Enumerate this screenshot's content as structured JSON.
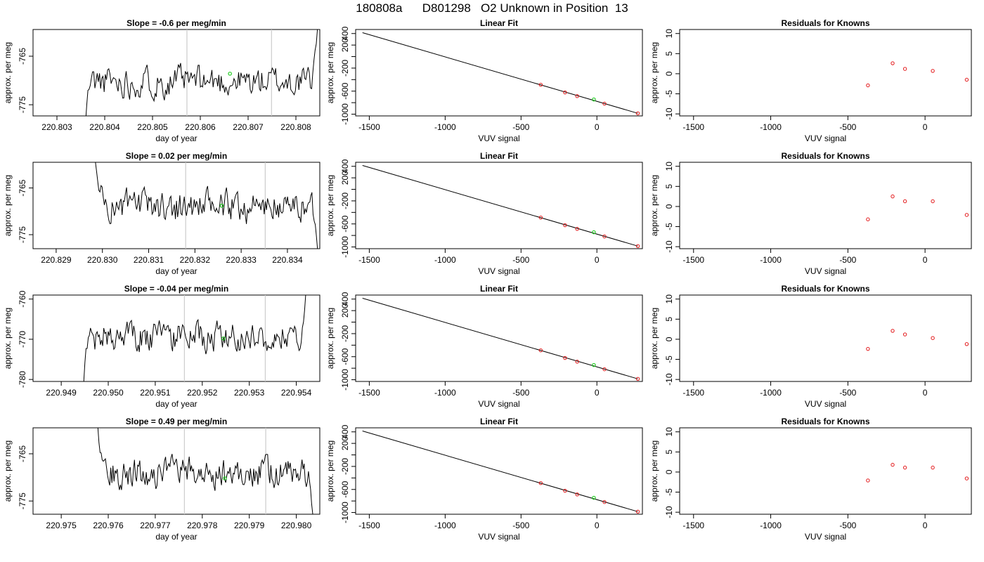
{
  "page_title": "180808a      D801298   O2 Unknown in Position  13",
  "labels": {
    "ts_xlabel": "day of year",
    "ylabel": "approx. per meg",
    "fit_title": "Linear Fit",
    "vuv_xlabel": "VUV signal",
    "resid_title": "Residuals for Knowns"
  },
  "colors": {
    "line": "#000000",
    "known": "#e31a1c",
    "unknown": "#22cc22",
    "vline": "#cccccc"
  },
  "chart_data": [
    {
      "type": "line",
      "title": "Slope =  -0.6  per meg/min",
      "xlabel": "day of year",
      "ylabel": "approx. per meg",
      "xlim": [
        220.8025,
        220.8085
      ],
      "ylim": [
        -777.3,
        -759.5
      ],
      "xticks": [
        "220.803",
        "220.804",
        "220.805",
        "220.806",
        "220.807",
        "220.808"
      ],
      "xtick_values": [
        220.803,
        220.804,
        220.805,
        220.806,
        220.807,
        220.808
      ],
      "yticks": [
        "-775",
        "-765"
      ],
      "ytick_values": [
        -775,
        -765
      ],
      "start": 220.8036,
      "end": 220.80845,
      "baseline": -770.2,
      "amp": 1.7,
      "seed": 11,
      "ramp_in": 0.0001,
      "ramp_in_from": -778.5,
      "ramp_out": 0.00015,
      "ramp_out_to": -759.5,
      "vlines": [
        220.80572,
        220.80749
      ],
      "unknown_point": {
        "x": 220.80662,
        "y": -768.6
      }
    },
    {
      "type": "scatter",
      "title": "Linear Fit",
      "xlabel": "VUV signal",
      "ylabel": "approx. per meg",
      "xlim": [
        -1590,
        300
      ],
      "ylim": [
        -1030,
        470
      ],
      "xticks": [
        "-1500",
        "-1000",
        "-500",
        "0"
      ],
      "xtick_values": [
        -1500,
        -1000,
        -500,
        0
      ],
      "yticks": [
        "-1000",
        "-800",
        "-600",
        "-400",
        "-200",
        "0",
        "200",
        "400"
      ],
      "ytick_values": [
        -1000,
        -800,
        -600,
        -400,
        -200,
        0,
        200,
        400
      ],
      "ytick_show": [
        true,
        false,
        true,
        false,
        true,
        false,
        true,
        true
      ],
      "line": {
        "x": [
          -1545,
          270
        ],
        "y": [
          415,
          -985
        ]
      },
      "known_points": [
        {
          "x": -370,
          "y": -490
        },
        {
          "x": -210,
          "y": -622
        },
        {
          "x": -130,
          "y": -686
        },
        {
          "x": 50,
          "y": -818
        },
        {
          "x": 270,
          "y": -985
        }
      ],
      "unknown_point": {
        "x": -20,
        "y": -745
      }
    },
    {
      "type": "scatter",
      "title": "Residuals for Knowns",
      "xlabel": "VUV signal",
      "ylabel": "approx. per meg",
      "xlim": [
        -1590,
        300
      ],
      "ylim": [
        -10.5,
        11
      ],
      "xticks": [
        "-1500",
        "-1000",
        "-500",
        "0"
      ],
      "xtick_values": [
        -1500,
        -1000,
        -500,
        0
      ],
      "yticks": [
        "-10",
        "-5",
        "0",
        "5",
        "10"
      ],
      "ytick_values": [
        -10,
        -5,
        0,
        5,
        10
      ],
      "points": [
        {
          "x": -370,
          "y": -2.9
        },
        {
          "x": -210,
          "y": 2.6
        },
        {
          "x": -130,
          "y": 1.2
        },
        {
          "x": 50,
          "y": 0.7
        },
        {
          "x": 270,
          "y": -1.5
        }
      ]
    },
    {
      "type": "line",
      "title": "Slope =  0.02  per meg/min",
      "xlabel": "day of year",
      "ylabel": "approx. per meg",
      "xlim": [
        220.8285,
        220.8347
      ],
      "ylim": [
        -778.0,
        -759.5
      ],
      "xticks": [
        "220.829",
        "220.830",
        "220.831",
        "220.832",
        "220.833",
        "220.834"
      ],
      "xtick_values": [
        220.829,
        220.83,
        220.831,
        220.832,
        220.833,
        220.834
      ],
      "yticks": [
        "-775",
        "-765"
      ],
      "ytick_values": [
        -775,
        -765
      ],
      "start": 220.82985,
      "end": 220.83465,
      "baseline": -769.0,
      "amp": 1.8,
      "seed": 23,
      "ramp_in": 0.00025,
      "ramp_in_from": -759.5,
      "ramp_out": 0.00012,
      "ramp_out_to": -778.0,
      "vlines": [
        220.8318,
        220.83352
      ],
      "unknown_point": {
        "x": 220.83258,
        "y": -768.8
      }
    },
    {
      "type": "scatter",
      "title": "Linear Fit",
      "xlabel": "VUV signal",
      "ylabel": "approx. per meg",
      "xlim": [
        -1590,
        300
      ],
      "ylim": [
        -1030,
        470
      ],
      "xticks": [
        "-1500",
        "-1000",
        "-500",
        "0"
      ],
      "xtick_values": [
        -1500,
        -1000,
        -500,
        0
      ],
      "yticks": [
        "-1000",
        "-800",
        "-600",
        "-400",
        "-200",
        "0",
        "200",
        "400"
      ],
      "ytick_values": [
        -1000,
        -800,
        -600,
        -400,
        -200,
        0,
        200,
        400
      ],
      "ytick_show": [
        true,
        false,
        true,
        false,
        true,
        false,
        true,
        true
      ],
      "line": {
        "x": [
          -1545,
          270
        ],
        "y": [
          415,
          -985
        ]
      },
      "known_points": [
        {
          "x": -370,
          "y": -490
        },
        {
          "x": -210,
          "y": -622
        },
        {
          "x": -130,
          "y": -686
        },
        {
          "x": 50,
          "y": -818
        },
        {
          "x": 270,
          "y": -985
        }
      ],
      "unknown_point": {
        "x": -20,
        "y": -745
      }
    },
    {
      "type": "scatter",
      "title": "Residuals for Knowns",
      "xlabel": "VUV signal",
      "ylabel": "approx. per meg",
      "xlim": [
        -1590,
        300
      ],
      "ylim": [
        -10.5,
        11
      ],
      "xticks": [
        "-1500",
        "-1000",
        "-500",
        "0"
      ],
      "xtick_values": [
        -1500,
        -1000,
        -500,
        0
      ],
      "yticks": [
        "-10",
        "-5",
        "0",
        "5",
        "10"
      ],
      "ytick_values": [
        -10,
        -5,
        0,
        5,
        10
      ],
      "points": [
        {
          "x": -370,
          "y": -3.2
        },
        {
          "x": -210,
          "y": 2.5
        },
        {
          "x": -130,
          "y": 1.3
        },
        {
          "x": 50,
          "y": 1.3
        },
        {
          "x": 270,
          "y": -2.1
        }
      ]
    },
    {
      "type": "line",
      "title": "Slope =  -0.04  per meg/min",
      "xlabel": "day of year",
      "ylabel": "approx. per meg",
      "xlim": [
        220.9484,
        220.9545
      ],
      "ylim": [
        -780.5,
        -759.0
      ],
      "xticks": [
        "220.949",
        "220.950",
        "220.951",
        "220.952",
        "220.953",
        "220.954"
      ],
      "xtick_values": [
        220.949,
        220.95,
        220.951,
        220.952,
        220.953,
        220.954
      ],
      "yticks": [
        "-780",
        "-770",
        "-760"
      ],
      "ytick_values": [
        -780,
        -770,
        -760
      ],
      "start": 220.94948,
      "end": 220.9542,
      "baseline": -769.3,
      "amp": 2.0,
      "seed": 37,
      "ramp_in": 0.00012,
      "ramp_in_from": -780.5,
      "ramp_out": 8e-05,
      "ramp_out_to": -759.0,
      "vlines": [
        220.95162,
        220.95334
      ],
      "unknown_point": {
        "x": 220.95245,
        "y": -769.8
      }
    },
    {
      "type": "scatter",
      "title": "Linear Fit",
      "xlabel": "VUV signal",
      "ylabel": "approx. per meg",
      "xlim": [
        -1590,
        300
      ],
      "ylim": [
        -1030,
        470
      ],
      "xticks": [
        "-1500",
        "-1000",
        "-500",
        "0"
      ],
      "xtick_values": [
        -1500,
        -1000,
        -500,
        0
      ],
      "yticks": [
        "-1000",
        "-800",
        "-600",
        "-400",
        "-200",
        "0",
        "200",
        "400"
      ],
      "ytick_values": [
        -1000,
        -800,
        -600,
        -400,
        -200,
        0,
        200,
        400
      ],
      "ytick_show": [
        true,
        false,
        true,
        false,
        true,
        false,
        true,
        true
      ],
      "line": {
        "x": [
          -1545,
          270
        ],
        "y": [
          415,
          -985
        ]
      },
      "known_points": [
        {
          "x": -370,
          "y": -490
        },
        {
          "x": -210,
          "y": -622
        },
        {
          "x": -130,
          "y": -686
        },
        {
          "x": 50,
          "y": -818
        },
        {
          "x": 270,
          "y": -985
        }
      ],
      "unknown_point": {
        "x": -20,
        "y": -745
      }
    },
    {
      "type": "scatter",
      "title": "Residuals for Knowns",
      "xlabel": "VUV signal",
      "ylabel": "approx. per meg",
      "xlim": [
        -1590,
        300
      ],
      "ylim": [
        -10.5,
        11
      ],
      "xticks": [
        "-1500",
        "-1000",
        "-500",
        "0"
      ],
      "xtick_values": [
        -1500,
        -1000,
        -500,
        0
      ],
      "yticks": [
        "-10",
        "-5",
        "0",
        "5",
        "10"
      ],
      "ytick_values": [
        -10,
        -5,
        0,
        5,
        10
      ],
      "points": [
        {
          "x": -370,
          "y": -2.4
        },
        {
          "x": -210,
          "y": 2.1
        },
        {
          "x": -130,
          "y": 1.2
        },
        {
          "x": 50,
          "y": 0.3
        },
        {
          "x": 270,
          "y": -1.2
        }
      ]
    },
    {
      "type": "line",
      "title": "Slope =  0.49  per meg/min",
      "xlabel": "day of year",
      "ylabel": "approx. per meg",
      "xlim": [
        220.9744,
        220.9805
      ],
      "ylim": [
        -777.8,
        -759.5
      ],
      "xticks": [
        "220.975",
        "220.976",
        "220.977",
        "220.978",
        "220.979",
        "220.980"
      ],
      "xtick_values": [
        220.975,
        220.976,
        220.977,
        220.978,
        220.979,
        220.98
      ],
      "yticks": [
        "-775",
        "-765"
      ],
      "ytick_values": [
        -775,
        -765
      ],
      "start": 220.97578,
      "end": 220.98035,
      "baseline": -769.0,
      "amp": 1.7,
      "seed": 53,
      "ramp_in": 0.0002,
      "ramp_in_from": -759.5,
      "ramp_out": 0.00012,
      "ramp_out_to": -777.8,
      "vlines": [
        220.97762,
        220.97935
      ],
      "unknown_point": {
        "x": 220.97848,
        "y": -770.2
      }
    },
    {
      "type": "scatter",
      "title": "Linear Fit",
      "xlabel": "VUV signal",
      "ylabel": "approx. per meg",
      "xlim": [
        -1590,
        300
      ],
      "ylim": [
        -1030,
        470
      ],
      "xticks": [
        "-1500",
        "-1000",
        "-500",
        "0"
      ],
      "xtick_values": [
        -1500,
        -1000,
        -500,
        0
      ],
      "yticks": [
        "-1000",
        "-800",
        "-600",
        "-400",
        "-200",
        "0",
        "200",
        "400"
      ],
      "ytick_values": [
        -1000,
        -800,
        -600,
        -400,
        -200,
        0,
        200,
        400
      ],
      "ytick_show": [
        true,
        false,
        true,
        false,
        true,
        false,
        true,
        true
      ],
      "line": {
        "x": [
          -1545,
          270
        ],
        "y": [
          415,
          -985
        ]
      },
      "known_points": [
        {
          "x": -370,
          "y": -490
        },
        {
          "x": -210,
          "y": -622
        },
        {
          "x": -130,
          "y": -686
        },
        {
          "x": 50,
          "y": -818
        },
        {
          "x": 270,
          "y": -985
        }
      ],
      "unknown_point": {
        "x": -20,
        "y": -745
      }
    },
    {
      "type": "scatter",
      "title": "Residuals for Knowns",
      "xlabel": "VUV signal",
      "ylabel": "approx. per meg",
      "xlim": [
        -1590,
        300
      ],
      "ylim": [
        -10.5,
        11
      ],
      "xticks": [
        "-1500",
        "-1000",
        "-500",
        "0"
      ],
      "xtick_values": [
        -1500,
        -1000,
        -500,
        0
      ],
      "yticks": [
        "-10",
        "-5",
        "0",
        "5",
        "10"
      ],
      "ytick_values": [
        -10,
        -5,
        0,
        5,
        10
      ],
      "points": [
        {
          "x": -370,
          "y": -2.1
        },
        {
          "x": -210,
          "y": 1.8
        },
        {
          "x": -130,
          "y": 1.1
        },
        {
          "x": 50,
          "y": 1.1
        },
        {
          "x": 270,
          "y": -1.6
        }
      ]
    }
  ]
}
